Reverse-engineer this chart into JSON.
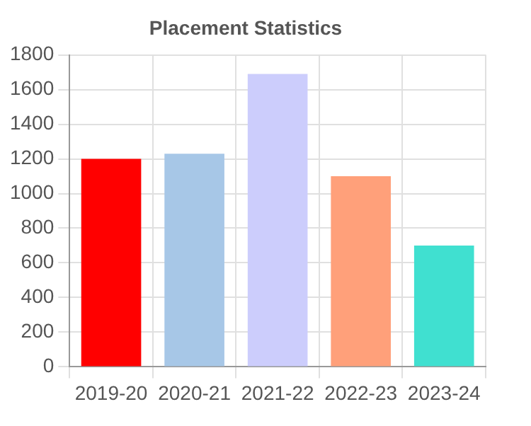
{
  "chart_data": {
    "type": "bar",
    "title": "Placement Statistics",
    "categories": [
      "2019-20",
      "2020-21",
      "2021-22",
      "2022-23",
      "2023-24"
    ],
    "values": [
      1200,
      1230,
      1690,
      1100,
      700
    ],
    "colors": [
      "#ff0000",
      "#a7c7e7",
      "#cccdfc",
      "#ffa07a",
      "#40e0d0"
    ],
    "ylim": [
      0,
      1800
    ],
    "yticks": [
      0,
      200,
      400,
      600,
      800,
      1000,
      1200,
      1400,
      1600,
      1800
    ],
    "grid": true,
    "legend": false
  }
}
